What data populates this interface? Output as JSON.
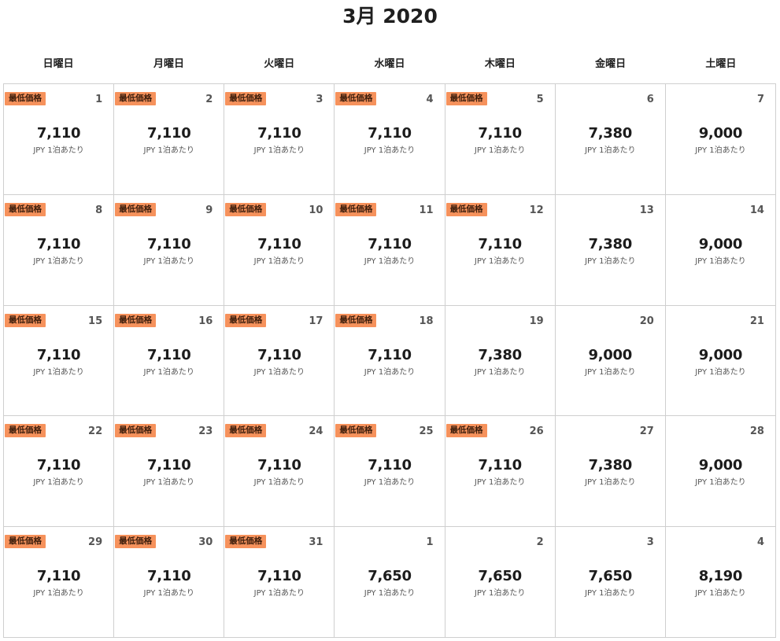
{
  "calendar": {
    "title": "3月 2020",
    "weekdays": [
      "日曜日",
      "月曜日",
      "火曜日",
      "水曜日",
      "木曜日",
      "金曜日",
      "土曜日"
    ],
    "badge_label": "最低価格",
    "price_unit": "JPY 1泊あたり",
    "colors": {
      "badge_bg": "#f6925c",
      "grid_border": "#cfcfcf"
    },
    "cells": [
      {
        "day": "1",
        "price": "7,110",
        "lowest": true
      },
      {
        "day": "2",
        "price": "7,110",
        "lowest": true
      },
      {
        "day": "3",
        "price": "7,110",
        "lowest": true
      },
      {
        "day": "4",
        "price": "7,110",
        "lowest": true
      },
      {
        "day": "5",
        "price": "7,110",
        "lowest": true
      },
      {
        "day": "6",
        "price": "7,380",
        "lowest": false
      },
      {
        "day": "7",
        "price": "9,000",
        "lowest": false
      },
      {
        "day": "8",
        "price": "7,110",
        "lowest": true
      },
      {
        "day": "9",
        "price": "7,110",
        "lowest": true
      },
      {
        "day": "10",
        "price": "7,110",
        "lowest": true
      },
      {
        "day": "11",
        "price": "7,110",
        "lowest": true
      },
      {
        "day": "12",
        "price": "7,110",
        "lowest": true
      },
      {
        "day": "13",
        "price": "7,380",
        "lowest": false
      },
      {
        "day": "14",
        "price": "9,000",
        "lowest": false
      },
      {
        "day": "15",
        "price": "7,110",
        "lowest": true
      },
      {
        "day": "16",
        "price": "7,110",
        "lowest": true
      },
      {
        "day": "17",
        "price": "7,110",
        "lowest": true
      },
      {
        "day": "18",
        "price": "7,110",
        "lowest": true
      },
      {
        "day": "19",
        "price": "7,380",
        "lowest": false
      },
      {
        "day": "20",
        "price": "9,000",
        "lowest": false
      },
      {
        "day": "21",
        "price": "9,000",
        "lowest": false
      },
      {
        "day": "22",
        "price": "7,110",
        "lowest": true
      },
      {
        "day": "23",
        "price": "7,110",
        "lowest": true
      },
      {
        "day": "24",
        "price": "7,110",
        "lowest": true
      },
      {
        "day": "25",
        "price": "7,110",
        "lowest": true
      },
      {
        "day": "26",
        "price": "7,110",
        "lowest": true
      },
      {
        "day": "27",
        "price": "7,380",
        "lowest": false
      },
      {
        "day": "28",
        "price": "9,000",
        "lowest": false
      },
      {
        "day": "29",
        "price": "7,110",
        "lowest": true
      },
      {
        "day": "30",
        "price": "7,110",
        "lowest": true
      },
      {
        "day": "31",
        "price": "7,110",
        "lowest": true
      },
      {
        "day": "1",
        "price": "7,650",
        "lowest": false
      },
      {
        "day": "2",
        "price": "7,650",
        "lowest": false
      },
      {
        "day": "3",
        "price": "7,650",
        "lowest": false
      },
      {
        "day": "4",
        "price": "8,190",
        "lowest": false
      }
    ]
  }
}
